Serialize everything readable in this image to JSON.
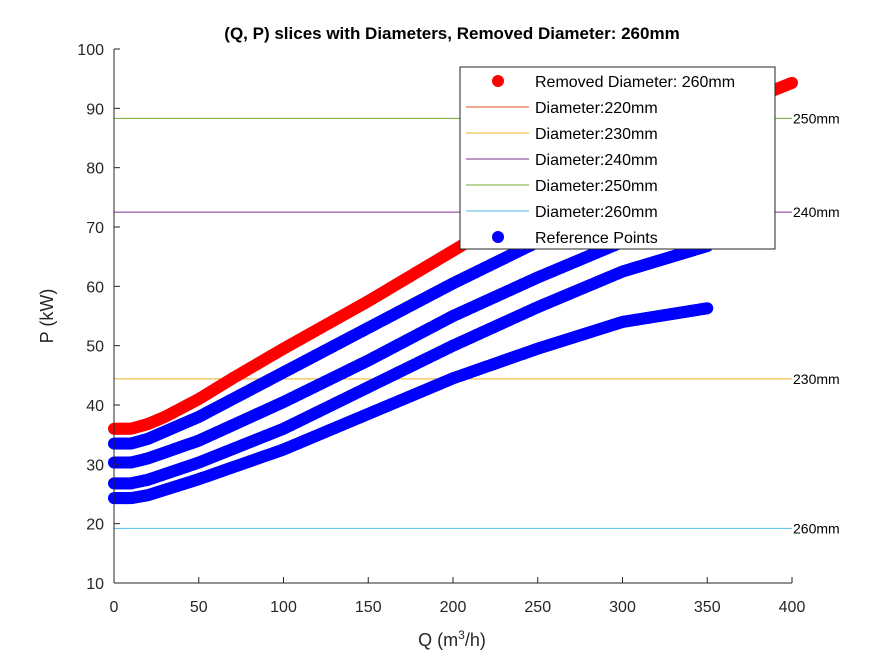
{
  "chart_data": {
    "type": "scatter",
    "title": "(Q, P) slices with Diameters, Removed Diameter: 260mm",
    "xlabel_prefix": "Q (m",
    "xlabel_sup": "3",
    "xlabel_suffix": "/h)",
    "ylabel": "P (kW)",
    "xlim": [
      0,
      400
    ],
    "ylim": [
      10,
      100
    ],
    "xticks": [
      0,
      50,
      100,
      150,
      200,
      250,
      300,
      350,
      400
    ],
    "yticks": [
      10,
      20,
      30,
      40,
      50,
      60,
      70,
      80,
      90,
      100
    ],
    "grid": false,
    "legend_position": "top-right",
    "legend": [
      {
        "label": "Removed Diameter: 260mm",
        "kind": "marker",
        "color": "#ff0000"
      },
      {
        "label": "Diameter:220mm",
        "kind": "line",
        "color": "#d95319"
      },
      {
        "label": "Diameter:230mm",
        "kind": "line",
        "color": "#edb120"
      },
      {
        "label": "Diameter:240mm",
        "kind": "line",
        "color": "#7e2f8e"
      },
      {
        "label": "Diameter:250mm",
        "kind": "line",
        "color": "#77ac30"
      },
      {
        "label": "Diameter:260mm",
        "kind": "line",
        "color": "#4dbeee"
      },
      {
        "label": "Reference Points",
        "kind": "marker",
        "color": "#0000ff"
      }
    ],
    "scatter_series": [
      {
        "name": "Removed Diameter: 260mm",
        "color": "#ff0000",
        "x_max": 400,
        "curve_x": [
          0,
          10,
          20,
          30,
          50,
          70,
          100,
          150,
          200,
          250,
          300,
          350,
          380,
          400
        ],
        "curve_y": [
          36,
          36,
          36.8,
          38,
          41,
          44.5,
          49.5,
          57.5,
          66,
          74.5,
          82,
          88.5,
          92,
          94.3
        ]
      },
      {
        "name": "Reference Points",
        "color": "#0000ff",
        "x_max": 350,
        "curve_x": [
          0,
          10,
          20,
          50,
          100,
          150,
          200,
          250,
          300,
          350
        ],
        "curve_y": [
          33.5,
          33.5,
          34.3,
          38,
          45.5,
          53,
          60.5,
          67.5,
          73,
          78
        ]
      },
      {
        "name": "Reference Points",
        "color": "#0000ff",
        "x_max": 350,
        "curve_x": [
          0,
          10,
          20,
          50,
          100,
          150,
          200,
          250,
          300,
          350
        ],
        "curve_y": [
          30.3,
          30.3,
          31,
          34,
          40.5,
          47.5,
          55,
          61.5,
          67.5,
          72
        ]
      },
      {
        "name": "Reference Points",
        "color": "#0000ff",
        "x_max": 350,
        "curve_x": [
          0,
          10,
          20,
          50,
          100,
          150,
          200,
          250,
          300,
          350
        ],
        "curve_y": [
          26.8,
          26.8,
          27.4,
          30.3,
          36,
          43,
          50,
          56.5,
          62.5,
          66.8
        ]
      },
      {
        "name": "Reference Points",
        "color": "#0000ff",
        "x_max": 350,
        "curve_x": [
          0,
          10,
          20,
          50,
          100,
          150,
          200,
          250,
          300,
          350
        ],
        "curve_y": [
          24.3,
          24.3,
          24.8,
          27.5,
          32.5,
          38.5,
          44.5,
          49.5,
          54,
          56.3
        ]
      }
    ],
    "diameter_lines": [
      {
        "name": "Diameter:230mm",
        "color": "#edb120",
        "y": 44.4,
        "label": "230mm"
      },
      {
        "name": "Diameter:260mm",
        "color": "#4dbeee",
        "y": 19.2,
        "label": "260mm"
      },
      {
        "name": "Diameter:250mm",
        "color": "#77ac30",
        "y": 88.3,
        "label": "250mm"
      },
      {
        "name": "Diameter:240mm",
        "color": "#7e2f8e",
        "y": 72.5,
        "label": "240mm"
      }
    ]
  }
}
